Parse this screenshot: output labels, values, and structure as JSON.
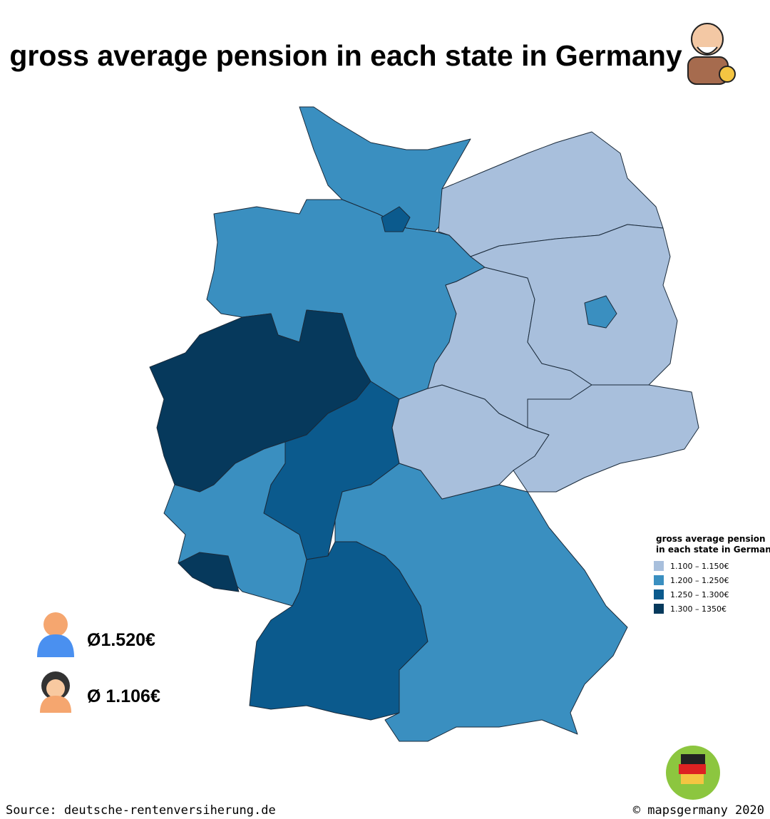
{
  "title": "gross average pension in each state in Germany",
  "legend": {
    "title": [
      "gross average pension",
      "in each state in Germany"
    ],
    "items": [
      {
        "label": "1.100 – 1.150€",
        "color": "#a8bfdc"
      },
      {
        "label": "1.200 – 1.250€",
        "color": "#3a8fc0"
      },
      {
        "label": "1.250 – 1.300€",
        "color": "#0b5a8d"
      },
      {
        "label": "1.300 – 1350€",
        "color": "#06395c"
      }
    ]
  },
  "averages": {
    "men": "Ø1.520€",
    "women": "Ø 1.106€"
  },
  "footer": {
    "source": "Source: deutsche-rentenversiherung.de",
    "copyright": "© mapsgermany 2020"
  }
}
